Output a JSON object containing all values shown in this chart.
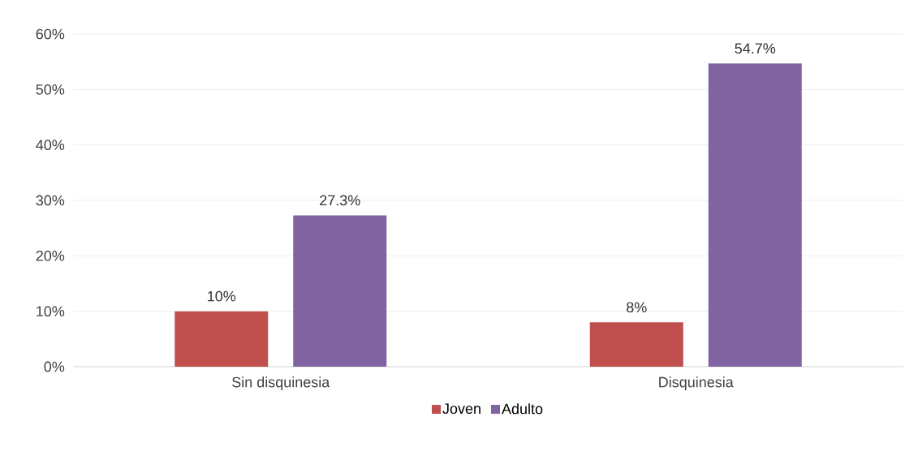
{
  "chart_data": {
    "type": "bar",
    "categories": [
      "Sin disquinesia",
      "Disquinesia"
    ],
    "series": [
      {
        "name": "Joven",
        "color": "#c0504d",
        "values": [
          10,
          8
        ],
        "value_labels": [
          "10%",
          "8%"
        ]
      },
      {
        "name": "Adulto",
        "color": "#8064a2",
        "values": [
          27.3,
          54.7
        ],
        "value_labels": [
          "27.3%",
          "54.7%"
        ]
      }
    ],
    "ylim": [
      0,
      60
    ],
    "yticks": [
      {
        "value": 0,
        "label": "0%"
      },
      {
        "value": 10,
        "label": "10%"
      },
      {
        "value": 20,
        "label": "20%"
      },
      {
        "value": 30,
        "label": "30%"
      },
      {
        "value": 40,
        "label": "40%"
      },
      {
        "value": 50,
        "label": "50%"
      },
      {
        "value": 60,
        "label": "60%"
      }
    ],
    "grid": "y",
    "legend": "bottom"
  }
}
